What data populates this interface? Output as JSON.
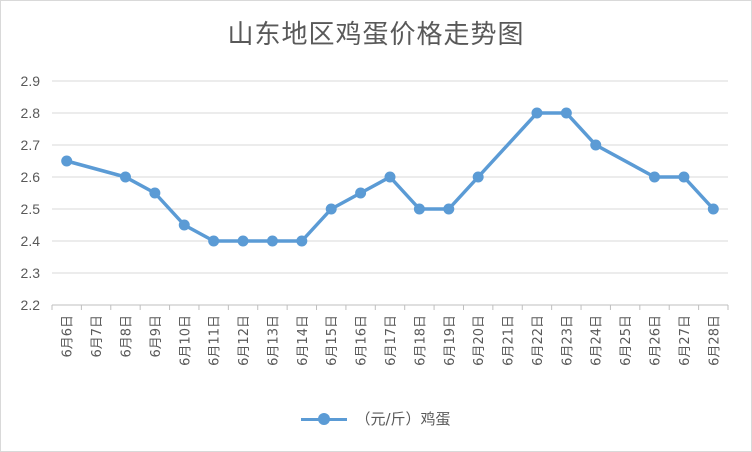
{
  "chart_data": {
    "type": "line",
    "title": "山东地区鸡蛋价格走势图",
    "categories": [
      "6月6日",
      "6月7日",
      "6月8日",
      "6月9日",
      "6月10日",
      "6月11日",
      "6月12日",
      "6月13日",
      "6月14日",
      "6月15日",
      "6月16日",
      "6月17日",
      "6月18日",
      "6月19日",
      "6月20日",
      "6月21日",
      "6月22日",
      "6月23日",
      "6月24日",
      "6月25日",
      "6月26日",
      "6月27日",
      "6月28日"
    ],
    "series": [
      {
        "name": "（元/斤）鸡蛋",
        "values": [
          2.65,
          null,
          2.6,
          2.55,
          2.45,
          2.4,
          2.4,
          2.4,
          2.4,
          2.5,
          2.55,
          2.6,
          2.5,
          2.5,
          2.6,
          null,
          2.8,
          2.8,
          2.7,
          null,
          2.6,
          2.6,
          2.5
        ]
      }
    ],
    "ylim": [
      2.2,
      2.9
    ],
    "yticks": [
      "2.2",
      "2.3",
      "2.4",
      "2.5",
      "2.6",
      "2.7",
      "2.8",
      "2.9"
    ],
    "grid": true,
    "legend": "bottom",
    "color": "#5b9bd5"
  }
}
